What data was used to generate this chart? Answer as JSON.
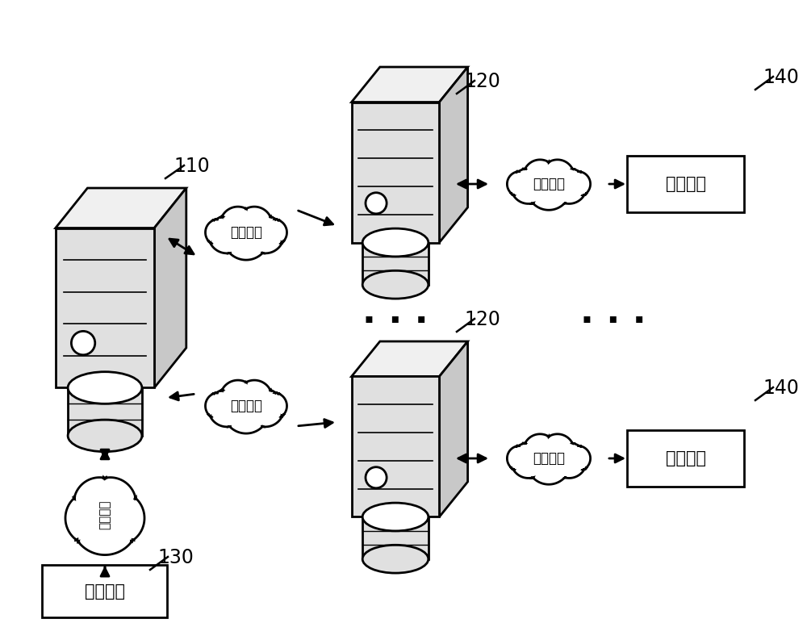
{
  "bg_color": "#ffffff",
  "label_110": "110",
  "label_120": "120",
  "label_130": "130",
  "label_140": "140",
  "text_network": "网络连接",
  "text_storage": "存储设备",
  "text_proxy": "代理节点",
  "ellipsis": "· · ·",
  "line_color": "#000000",
  "fill_gray1": "#e0e0e0",
  "fill_gray2": "#c8c8c8",
  "fill_gray3": "#f0f0f0",
  "fill_white": "#ffffff"
}
